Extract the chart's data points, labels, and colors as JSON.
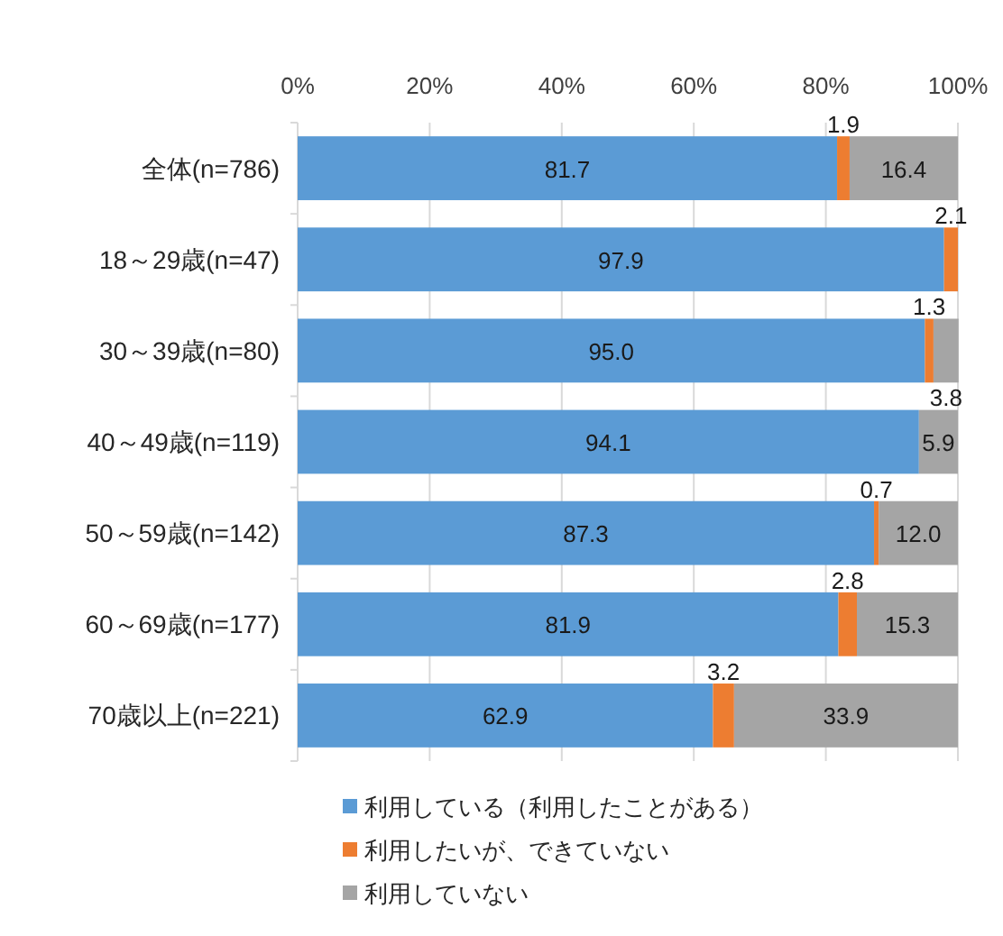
{
  "chart_data": {
    "type": "bar",
    "orientation": "horizontal",
    "stacked": true,
    "categories": [
      "全体(n=786)",
      "18～29歳(n=47)",
      "30～39歳(n=80)",
      "40～49歳(n=119)",
      "50～59歳(n=142)",
      "60～69歳(n=177)",
      "70歳以上(n=221)"
    ],
    "series": [
      {
        "name": "利用している（利用したことがある）",
        "color": "#5b9bd5",
        "values": [
          81.7,
          97.9,
          95.0,
          94.1,
          87.3,
          81.9,
          62.9
        ],
        "value_labels": [
          "81.7",
          "97.9",
          "95.0",
          "94.1",
          "87.3",
          "81.9",
          "62.9"
        ]
      },
      {
        "name": "利用したいが、できていない",
        "color": "#ed7d31",
        "values": [
          1.9,
          2.1,
          1.3,
          0,
          0.7,
          2.8,
          3.2
        ],
        "value_labels": [
          "1.9",
          "2.1",
          "1.3",
          null,
          "0.7",
          "2.8",
          "3.2"
        ]
      },
      {
        "name": "利用していない",
        "color": "#a5a5a5",
        "values": [
          16.4,
          0,
          3.8,
          5.9,
          12.0,
          15.3,
          33.9
        ],
        "value_labels": [
          "16.4",
          null,
          "3.8",
          "5.9",
          "12.0",
          "15.3",
          "33.9"
        ]
      }
    ],
    "xlim": [
      0,
      100
    ],
    "xticks": [
      {
        "value": 0,
        "label": "0%"
      },
      {
        "value": 20,
        "label": "20%"
      },
      {
        "value": 40,
        "label": "40%"
      },
      {
        "value": 60,
        "label": "60%"
      },
      {
        "value": 80,
        "label": "80%"
      },
      {
        "value": 100,
        "label": "100%"
      }
    ],
    "grid": "x",
    "legend": "bottom"
  }
}
